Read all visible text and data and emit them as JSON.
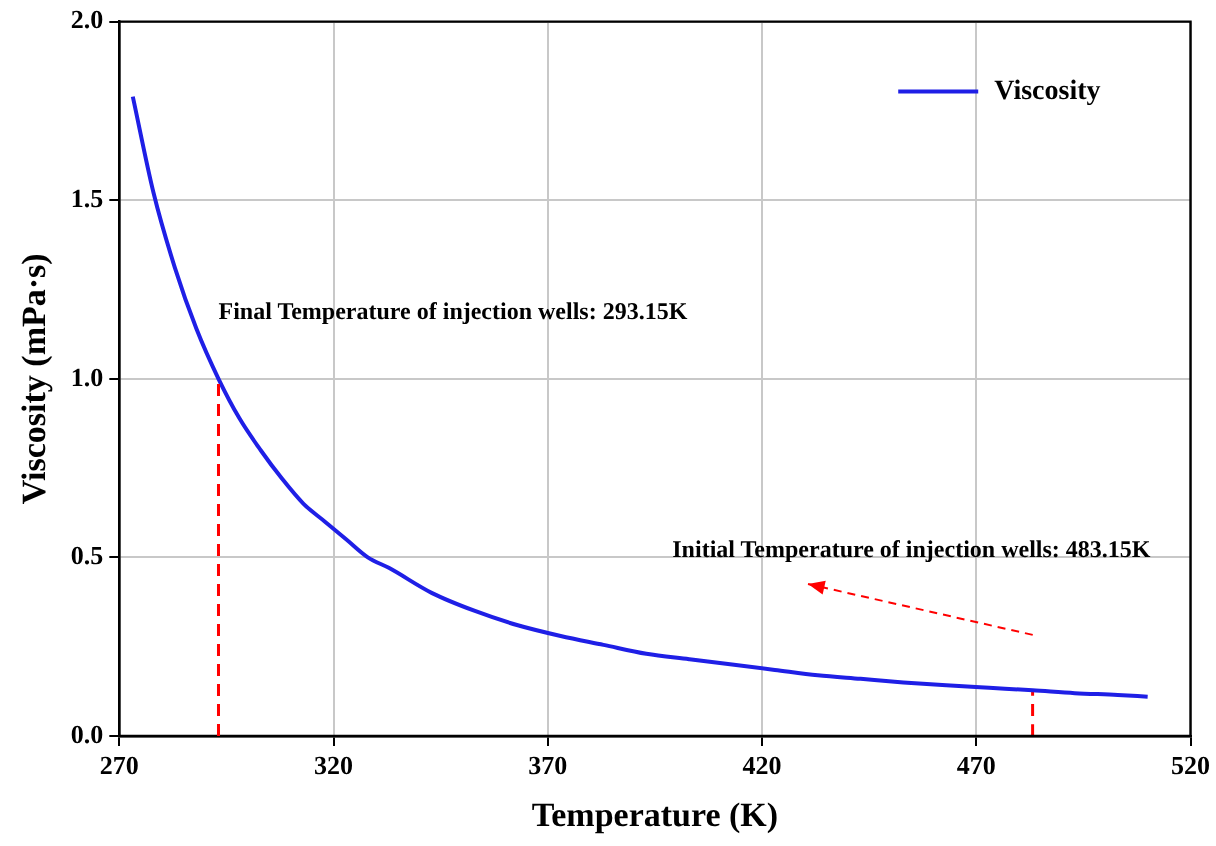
{
  "chart_data": {
    "type": "line",
    "xlabel": "Temperature (K)",
    "ylabel": "Viscosity (mPa·s)",
    "x": [
      273.15,
      278,
      283,
      288,
      293.15,
      298,
      303,
      308,
      313,
      318,
      323,
      328,
      333,
      343,
      353,
      363,
      373,
      383,
      393,
      403,
      413,
      423,
      433,
      443,
      453,
      463,
      473,
      483.15,
      493,
      503,
      510
    ],
    "series": [
      {
        "name": "Viscosity",
        "color": "#1f1fe6",
        "values": [
          1.79,
          1.52,
          1.31,
          1.14,
          1.0,
          0.89,
          0.8,
          0.72,
          0.65,
          0.6,
          0.55,
          0.5,
          0.47,
          0.4,
          0.35,
          0.31,
          0.28,
          0.255,
          0.23,
          0.215,
          0.2,
          0.185,
          0.17,
          0.16,
          0.15,
          0.142,
          0.135,
          0.128,
          0.12,
          0.115,
          0.11
        ]
      },
      {
        "type": "line",
        "x": [
          483.15,
          483.15
        ],
        "values": [
          0,
          0.128
        ],
        "color": "#ff0000",
        "line_style": "dashed"
      }
    ],
    "xlim": [
      270,
      520
    ],
    "xticks": [
      270,
      320,
      370,
      420,
      470,
      520
    ],
    "ylim": [
      0,
      2
    ],
    "yticks": [
      {
        "value": 0,
        "label": "0.0"
      },
      {
        "value": 0.5,
        "label": "0.5"
      },
      {
        "value": 1,
        "label": "1.0"
      },
      {
        "value": 1.5,
        "label": "1.5"
      },
      {
        "value": 2,
        "label": "2.0"
      }
    ],
    "grid": true,
    "legend": "top right",
    "marker": "none",
    "line_style": "solid",
    "ref_lines": [
      {
        "axis": "x",
        "value": 293.15,
        "color": "#ff0000",
        "line_style": "dashed"
      }
    ],
    "annotations": [
      {
        "text": "Final Temperature of injection wells: 293.15K",
        "x": 293.15,
        "y": 1.0
      },
      "Initial Temperature of injection wells: 483.15K"
    ]
  }
}
